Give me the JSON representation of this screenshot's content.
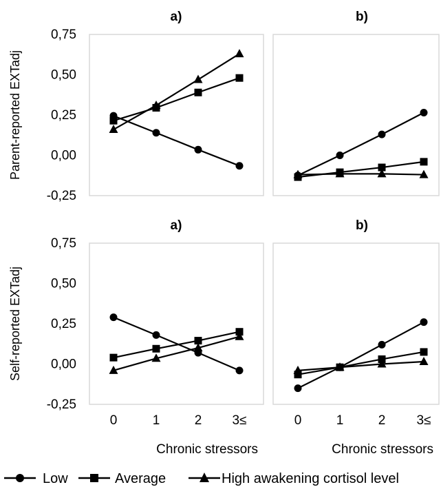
{
  "legend": [
    {
      "label": "Low",
      "marker": "circle"
    },
    {
      "label": "Average",
      "marker": "square"
    },
    {
      "label": "High awakening cortisol level",
      "marker": "triangle"
    }
  ],
  "colors": {
    "series": "#000000",
    "border": "#d9d9d9",
    "background": "#ffffff"
  },
  "chart_data": [
    {
      "type": "line",
      "title": "a)",
      "ylabel": "Parent-reported EXTadj",
      "xlabel": "",
      "ylim": [
        -0.25,
        0.75
      ],
      "yticks": [
        "0,75",
        "0,50",
        "0,25",
        "0,00",
        "-0,25"
      ],
      "yticks_values": [
        0.75,
        0.5,
        0.25,
        0.0,
        -0.25
      ],
      "categories": [],
      "x": [
        "0",
        "1",
        "2",
        "3≤"
      ],
      "series": [
        {
          "name": "Low",
          "values": [
            0.245,
            0.14,
            0.035,
            -0.065
          ]
        },
        {
          "name": "Average",
          "values": [
            0.215,
            0.295,
            0.39,
            0.48
          ]
        },
        {
          "name": "High awakening cortisol level",
          "values": [
            0.16,
            0.31,
            0.47,
            0.63
          ]
        }
      ],
      "grid": false
    },
    {
      "type": "line",
      "title": "b)",
      "ylabel": "",
      "xlabel": "",
      "ylim": [
        -0.25,
        0.75
      ],
      "categories": [],
      "x": [
        "0",
        "1",
        "2",
        "3≤"
      ],
      "series": [
        {
          "name": "Low",
          "values": [
            -0.125,
            0.0,
            0.13,
            0.265
          ]
        },
        {
          "name": "Average",
          "values": [
            -0.135,
            -0.105,
            -0.075,
            -0.04
          ]
        },
        {
          "name": "High awakening cortisol level",
          "values": [
            -0.12,
            -0.115,
            -0.115,
            -0.12
          ]
        }
      ],
      "grid": false
    },
    {
      "type": "line",
      "title": "a)",
      "ylabel": "Self-reported EXTadj",
      "xlabel": "Chronic stressors",
      "ylim": [
        -0.25,
        0.75
      ],
      "yticks": [
        "0,75",
        "0,50",
        "0,25",
        "0,00",
        "-0,25"
      ],
      "yticks_values": [
        0.75,
        0.5,
        0.25,
        0.0,
        -0.25
      ],
      "categories": [
        "0",
        "1",
        "2",
        "3≤"
      ],
      "x": [
        "0",
        "1",
        "2",
        "3≤"
      ],
      "series": [
        {
          "name": "Low",
          "values": [
            0.29,
            0.18,
            0.07,
            -0.04
          ]
        },
        {
          "name": "Average",
          "values": [
            0.04,
            0.095,
            0.145,
            0.2
          ]
        },
        {
          "name": "High awakening cortisol level",
          "values": [
            -0.04,
            0.035,
            0.1,
            0.17
          ]
        }
      ],
      "grid": false
    },
    {
      "type": "line",
      "title": "b)",
      "ylabel": "",
      "xlabel": "Chronic stressors",
      "ylim": [
        -0.25,
        0.75
      ],
      "categories": [
        "0",
        "1",
        "2",
        "3≤"
      ],
      "x": [
        "0",
        "1",
        "2",
        "3≤"
      ],
      "series": [
        {
          "name": "Low",
          "values": [
            -0.15,
            -0.02,
            0.12,
            0.26
          ]
        },
        {
          "name": "Average",
          "values": [
            -0.065,
            -0.02,
            0.03,
            0.075
          ]
        },
        {
          "name": "High awakening cortisol level",
          "values": [
            -0.04,
            -0.02,
            0.0,
            0.015
          ]
        }
      ],
      "grid": false
    }
  ]
}
